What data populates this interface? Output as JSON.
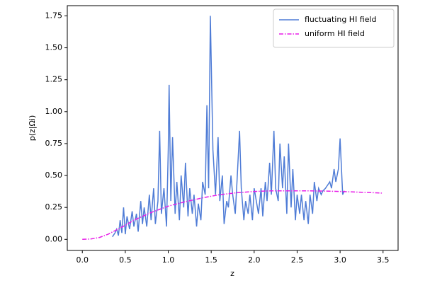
{
  "chart_data": {
    "type": "line",
    "xlabel": "z",
    "ylabel": "p(z|Ωi)",
    "xlim": [
      -0.175,
      3.675
    ],
    "xticks": [
      {
        "value": 0,
        "label": "0.0"
      },
      0.5,
      {
        "value": 1,
        "label": "1.0"
      },
      1.5,
      {
        "value": 2,
        "label": "2.0"
      },
      2.5,
      {
        "value": 3,
        "label": "3.0"
      },
      3.5
    ],
    "ylim": [
      -0.087,
      1.83
    ],
    "yticks": [
      {
        "value": 0,
        "label": "0.00"
      },
      0.25,
      {
        "value": 0.5,
        "label": "0.50"
      },
      0.75,
      {
        "value": 1,
        "label": "1.00"
      },
      1.25,
      {
        "value": 1.5,
        "label": "1.50"
      },
      1.75
    ],
    "legend": "upper right",
    "series": [
      {
        "name": "fluctuating HI field",
        "color": "#4f7cd6",
        "linestyle": "solid",
        "x": [
          0.35,
          0.38,
          0.4,
          0.42,
          0.44,
          0.46,
          0.48,
          0.5,
          0.52,
          0.55,
          0.58,
          0.6,
          0.63,
          0.65,
          0.68,
          0.7,
          0.72,
          0.75,
          0.78,
          0.8,
          0.83,
          0.85,
          0.88,
          0.9,
          0.92,
          0.95,
          0.98,
          1.0,
          1.01,
          1.03,
          1.05,
          1.08,
          1.1,
          1.13,
          1.15,
          1.18,
          1.2,
          1.23,
          1.25,
          1.28,
          1.3,
          1.33,
          1.35,
          1.38,
          1.4,
          1.43,
          1.45,
          1.47,
          1.49,
          1.52,
          1.55,
          1.58,
          1.6,
          1.63,
          1.65,
          1.68,
          1.7,
          1.73,
          1.75,
          1.78,
          1.8,
          1.83,
          1.85,
          1.88,
          1.9,
          1.93,
          1.95,
          1.98,
          2.0,
          2.03,
          2.05,
          2.08,
          2.1,
          2.13,
          2.15,
          2.18,
          2.2,
          2.23,
          2.25,
          2.28,
          2.3,
          2.33,
          2.35,
          2.38,
          2.4,
          2.43,
          2.45,
          2.48,
          2.5,
          2.53,
          2.55,
          2.58,
          2.6,
          2.63,
          2.65,
          2.68,
          2.7,
          2.73,
          2.75,
          2.78,
          2.8,
          2.83,
          2.85,
          2.88,
          2.9,
          2.93,
          2.95,
          2.98,
          3.0,
          3.03,
          3.05
        ],
        "values": [
          0.02,
          0.05,
          0.08,
          0.03,
          0.15,
          0.05,
          0.25,
          0.04,
          0.18,
          0.08,
          0.22,
          0.1,
          0.2,
          0.06,
          0.3,
          0.12,
          0.25,
          0.1,
          0.35,
          0.15,
          0.4,
          0.12,
          0.3,
          0.85,
          0.2,
          0.4,
          0.1,
          0.7,
          1.21,
          0.3,
          0.8,
          0.2,
          0.45,
          0.15,
          0.5,
          0.25,
          0.6,
          0.18,
          0.4,
          0.2,
          0.35,
          0.1,
          0.28,
          0.15,
          0.45,
          0.35,
          1.05,
          0.4,
          1.75,
          0.7,
          0.35,
          0.8,
          0.3,
          0.5,
          0.12,
          0.3,
          0.25,
          0.5,
          0.35,
          0.2,
          0.45,
          0.85,
          0.4,
          0.15,
          0.3,
          0.2,
          0.35,
          0.15,
          0.4,
          0.28,
          0.2,
          0.4,
          0.18,
          0.45,
          0.3,
          0.6,
          0.35,
          0.85,
          0.4,
          0.3,
          0.75,
          0.4,
          0.65,
          0.2,
          0.75,
          0.25,
          0.55,
          0.15,
          0.35,
          0.2,
          0.35,
          0.15,
          0.3,
          0.12,
          0.35,
          0.2,
          0.45,
          0.3,
          0.4,
          0.35,
          0.38,
          0.4,
          0.42,
          0.45,
          0.4,
          0.55,
          0.45,
          0.55,
          0.79,
          0.35,
          0.38
        ]
      },
      {
        "name": "uniform HI field",
        "color": "#e81ee8",
        "linestyle": "dashdot",
        "x": [
          0,
          0.1,
          0.2,
          0.3,
          0.4,
          0.5,
          0.6,
          0.7,
          0.8,
          0.9,
          1.0,
          1.2,
          1.4,
          1.6,
          1.8,
          2.0,
          2.2,
          2.4,
          2.6,
          2.8,
          3.0,
          3.2,
          3.4,
          3.5
        ],
        "values": [
          0,
          0.003,
          0.015,
          0.04,
          0.075,
          0.11,
          0.15,
          0.18,
          0.21,
          0.235,
          0.26,
          0.295,
          0.325,
          0.35,
          0.365,
          0.375,
          0.38,
          0.38,
          0.38,
          0.378,
          0.375,
          0.37,
          0.365,
          0.362
        ]
      }
    ]
  }
}
